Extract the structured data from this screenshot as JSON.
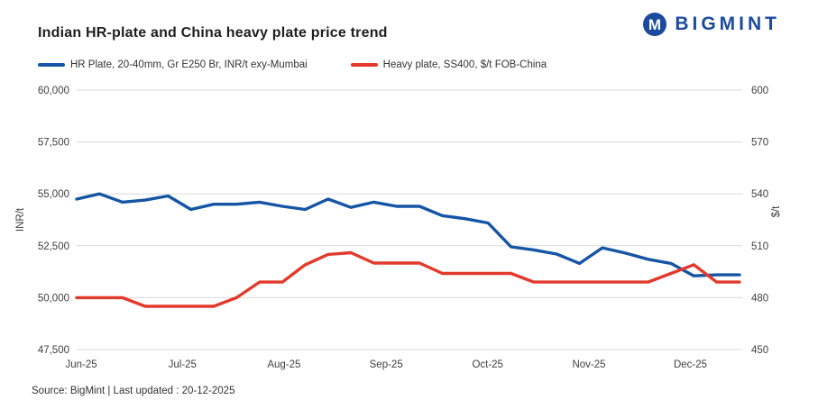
{
  "header": {
    "title": "Indian HR-plate and China heavy plate price trend",
    "logo_text": "BIGMINT",
    "logo_color": "#1b4a9e"
  },
  "legend": [
    {
      "label": "HR Plate, 20-40mm, Gr E250 Br, INR/t exy-Mumbai",
      "color": "#1655a5"
    },
    {
      "label": "Heavy plate, SS400, $/t FOB-China",
      "color": "#e23a2c"
    }
  ],
  "chart_data": {
    "type": "line",
    "grid": "horizontal",
    "grid_color": "#d9d9d9",
    "x_span": 29,
    "x_ticks": [
      {
        "label": "Jun-25",
        "pos": 0.2
      },
      {
        "label": "Jul-25",
        "pos": 4.63
      },
      {
        "label": "Aug-25",
        "pos": 9.07
      },
      {
        "label": "Sep-25",
        "pos": 13.54
      },
      {
        "label": "Oct-25",
        "pos": 17.98
      },
      {
        "label": "Nov-25",
        "pos": 22.41
      },
      {
        "label": "Dec-25",
        "pos": 26.85
      }
    ],
    "left_axis": {
      "label": "INR/t",
      "min": 47500,
      "max": 60000,
      "ticks": [
        {
          "value": 47500,
          "label": "47,500"
        },
        {
          "value": 50000,
          "label": "50,000"
        },
        {
          "value": 52500,
          "label": "52,500"
        },
        {
          "value": 55000,
          "label": "55,000"
        },
        {
          "value": 57500,
          "label": "57,500"
        },
        {
          "value": 60000,
          "label": "60,000"
        }
      ]
    },
    "right_axis": {
      "label": "$/t",
      "min": 450,
      "max": 600,
      "ticks": [
        {
          "value": 450,
          "label": "450"
        },
        {
          "value": 480,
          "label": "480"
        },
        {
          "value": 510,
          "label": "510"
        },
        {
          "value": 540,
          "label": "540"
        },
        {
          "value": 570,
          "label": "570"
        },
        {
          "value": 600,
          "label": "600"
        }
      ]
    },
    "series": [
      {
        "name": "HR Plate, 20-40mm, Gr E250 Br, INR/t exy-Mumbai",
        "axis": "left",
        "color": "#1655a5",
        "values": [
          54750,
          55000,
          54600,
          54700,
          54900,
          54250,
          54500,
          54500,
          54600,
          54400,
          54250,
          54750,
          54350,
          54600,
          54400,
          54400,
          53950,
          53800,
          53600,
          52450,
          52300,
          52100,
          51650,
          52400,
          52150,
          51850,
          51650,
          51050,
          51100,
          51100
        ]
      },
      {
        "name": "Heavy plate, SS400, $/t FOB-China",
        "axis": "right",
        "color": "#e23a2c",
        "values": [
          480,
          480,
          480,
          475,
          475,
          475,
          475,
          480,
          489,
          489,
          499,
          505,
          506,
          500,
          500,
          500,
          494,
          494,
          494,
          494,
          489,
          489,
          489,
          489,
          489,
          489,
          494,
          499,
          489,
          489
        ]
      }
    ]
  },
  "footer": {
    "text": "Source: BigMint | Last updated : 20-12-2025"
  }
}
